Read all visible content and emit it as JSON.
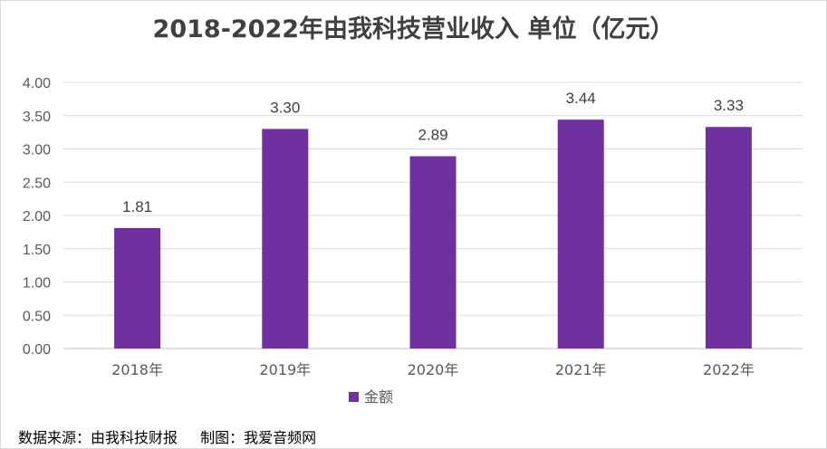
{
  "chart_data": {
    "type": "bar",
    "title": "2018-2022年由我科技营业收入 单位（亿元）",
    "categories": [
      "2018年",
      "2019年",
      "2020年",
      "2021年",
      "2022年"
    ],
    "series": [
      {
        "name": "金额",
        "values": [
          1.81,
          3.3,
          2.89,
          3.44,
          3.33
        ],
        "color": "#7030a0"
      }
    ],
    "ylim": [
      0,
      4.0
    ],
    "ytick_labels": [
      "0.00",
      "0.50",
      "1.00",
      "1.50",
      "2.00",
      "2.50",
      "3.00",
      "3.50",
      "4.00"
    ],
    "data_labels": [
      "1.81",
      "3.30",
      "2.89",
      "3.44",
      "3.33"
    ],
    "grid": true,
    "legend_position": "bottom"
  },
  "footer": {
    "source": "数据来源：由我科技财报",
    "maker": "制图：我爱音频网"
  }
}
